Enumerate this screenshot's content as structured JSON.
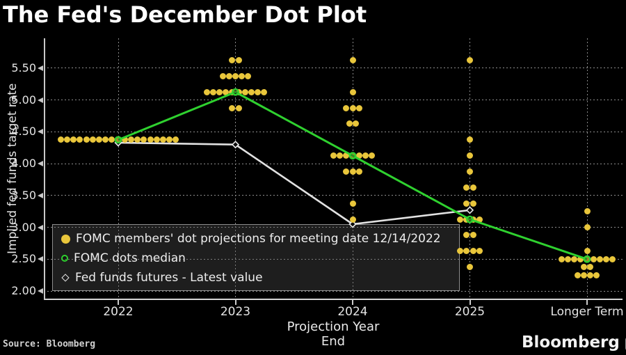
{
  "title": "The Fed's December Dot Plot",
  "source_note": "Source: Bloomberg",
  "brand": {
    "wordmark": "Bloomberg",
    "icon": "bar-chart-icon"
  },
  "chart_data": {
    "type": "scatter",
    "title": "The Fed's December Dot Plot",
    "xlabel": "Projection Year End",
    "ylabel": "Implied fed funds target rate",
    "categories": [
      "2022",
      "2023",
      "2024",
      "2025",
      "Longer Term"
    ],
    "y_ticks": [
      5.5,
      5.0,
      4.5,
      4.0,
      3.5,
      3.0,
      2.5,
      2.0
    ],
    "y_tick_format": "2-decimals",
    "ylim": [
      1.95,
      5.9
    ],
    "grid": {
      "horizontal": "dotted",
      "vertical": "dotted"
    },
    "colors": {
      "background": "#000000",
      "dots": "#e9c63b",
      "median_line": "#2fd12f",
      "futures_line": "#e2e2e2",
      "gridline": "#8a8a8a",
      "axis": "#c9c9c9",
      "text": "#e4e4e4"
    },
    "legend": {
      "position": "bottom-left-overlay",
      "items": [
        {
          "marker": "filled-circle",
          "color": "#e9c63b",
          "label": "FOMC members' dot projections for meeting date 12/14/2022"
        },
        {
          "marker": "open-circle",
          "color": "#2fd12f",
          "label": "FOMC dots median"
        },
        {
          "marker": "open-diamond",
          "color": "#e8e8e8",
          "label": "Fed funds futures - Latest value"
        }
      ]
    },
    "dot_columns": [
      {
        "category": "2022",
        "rows": [
          {
            "rate": 4.375,
            "count": 19
          }
        ]
      },
      {
        "category": "2023",
        "rows": [
          {
            "rate": 5.625,
            "count": 2
          },
          {
            "rate": 5.375,
            "count": 5
          },
          {
            "rate": 5.125,
            "count": 10
          },
          {
            "rate": 4.875,
            "count": 2
          }
        ]
      },
      {
        "category": "2024",
        "rows": [
          {
            "rate": 5.625,
            "count": 1
          },
          {
            "rate": 5.125,
            "count": 1
          },
          {
            "rate": 4.875,
            "count": 3
          },
          {
            "rate": 4.625,
            "count": 2
          },
          {
            "rate": 4.125,
            "count": 7
          },
          {
            "rate": 3.875,
            "count": 3
          },
          {
            "rate": 3.375,
            "count": 1
          },
          {
            "rate": 3.125,
            "count": 1
          }
        ]
      },
      {
        "category": "2025",
        "rows": [
          {
            "rate": 5.625,
            "count": 1
          },
          {
            "rate": 4.375,
            "count": 1
          },
          {
            "rate": 4.125,
            "count": 1
          },
          {
            "rate": 3.875,
            "count": 1
          },
          {
            "rate": 3.625,
            "count": 2
          },
          {
            "rate": 3.375,
            "count": 2
          },
          {
            "rate": 3.125,
            "count": 4
          },
          {
            "rate": 2.875,
            "count": 2
          },
          {
            "rate": 2.625,
            "count": 4
          },
          {
            "rate": 2.375,
            "count": 1
          }
        ]
      },
      {
        "category": "Longer Term",
        "rows": [
          {
            "rate": 3.25,
            "count": 1
          },
          {
            "rate": 3.0,
            "count": 1
          },
          {
            "rate": 2.625,
            "count": 1
          },
          {
            "rate": 2.5,
            "count": 9
          },
          {
            "rate": 2.375,
            "count": 2
          },
          {
            "rate": 2.25,
            "count": 4
          }
        ]
      }
    ],
    "series": [
      {
        "name": "FOMC dots median",
        "marker": "open-circle",
        "color": "#2fd12f",
        "values": [
          4.375,
          5.125,
          4.125,
          3.125,
          2.5
        ]
      },
      {
        "name": "Fed funds futures - Latest value",
        "marker": "open-diamond",
        "color": "#e2e2e2",
        "values": [
          4.33,
          4.3,
          3.05,
          3.27,
          null
        ]
      }
    ]
  }
}
